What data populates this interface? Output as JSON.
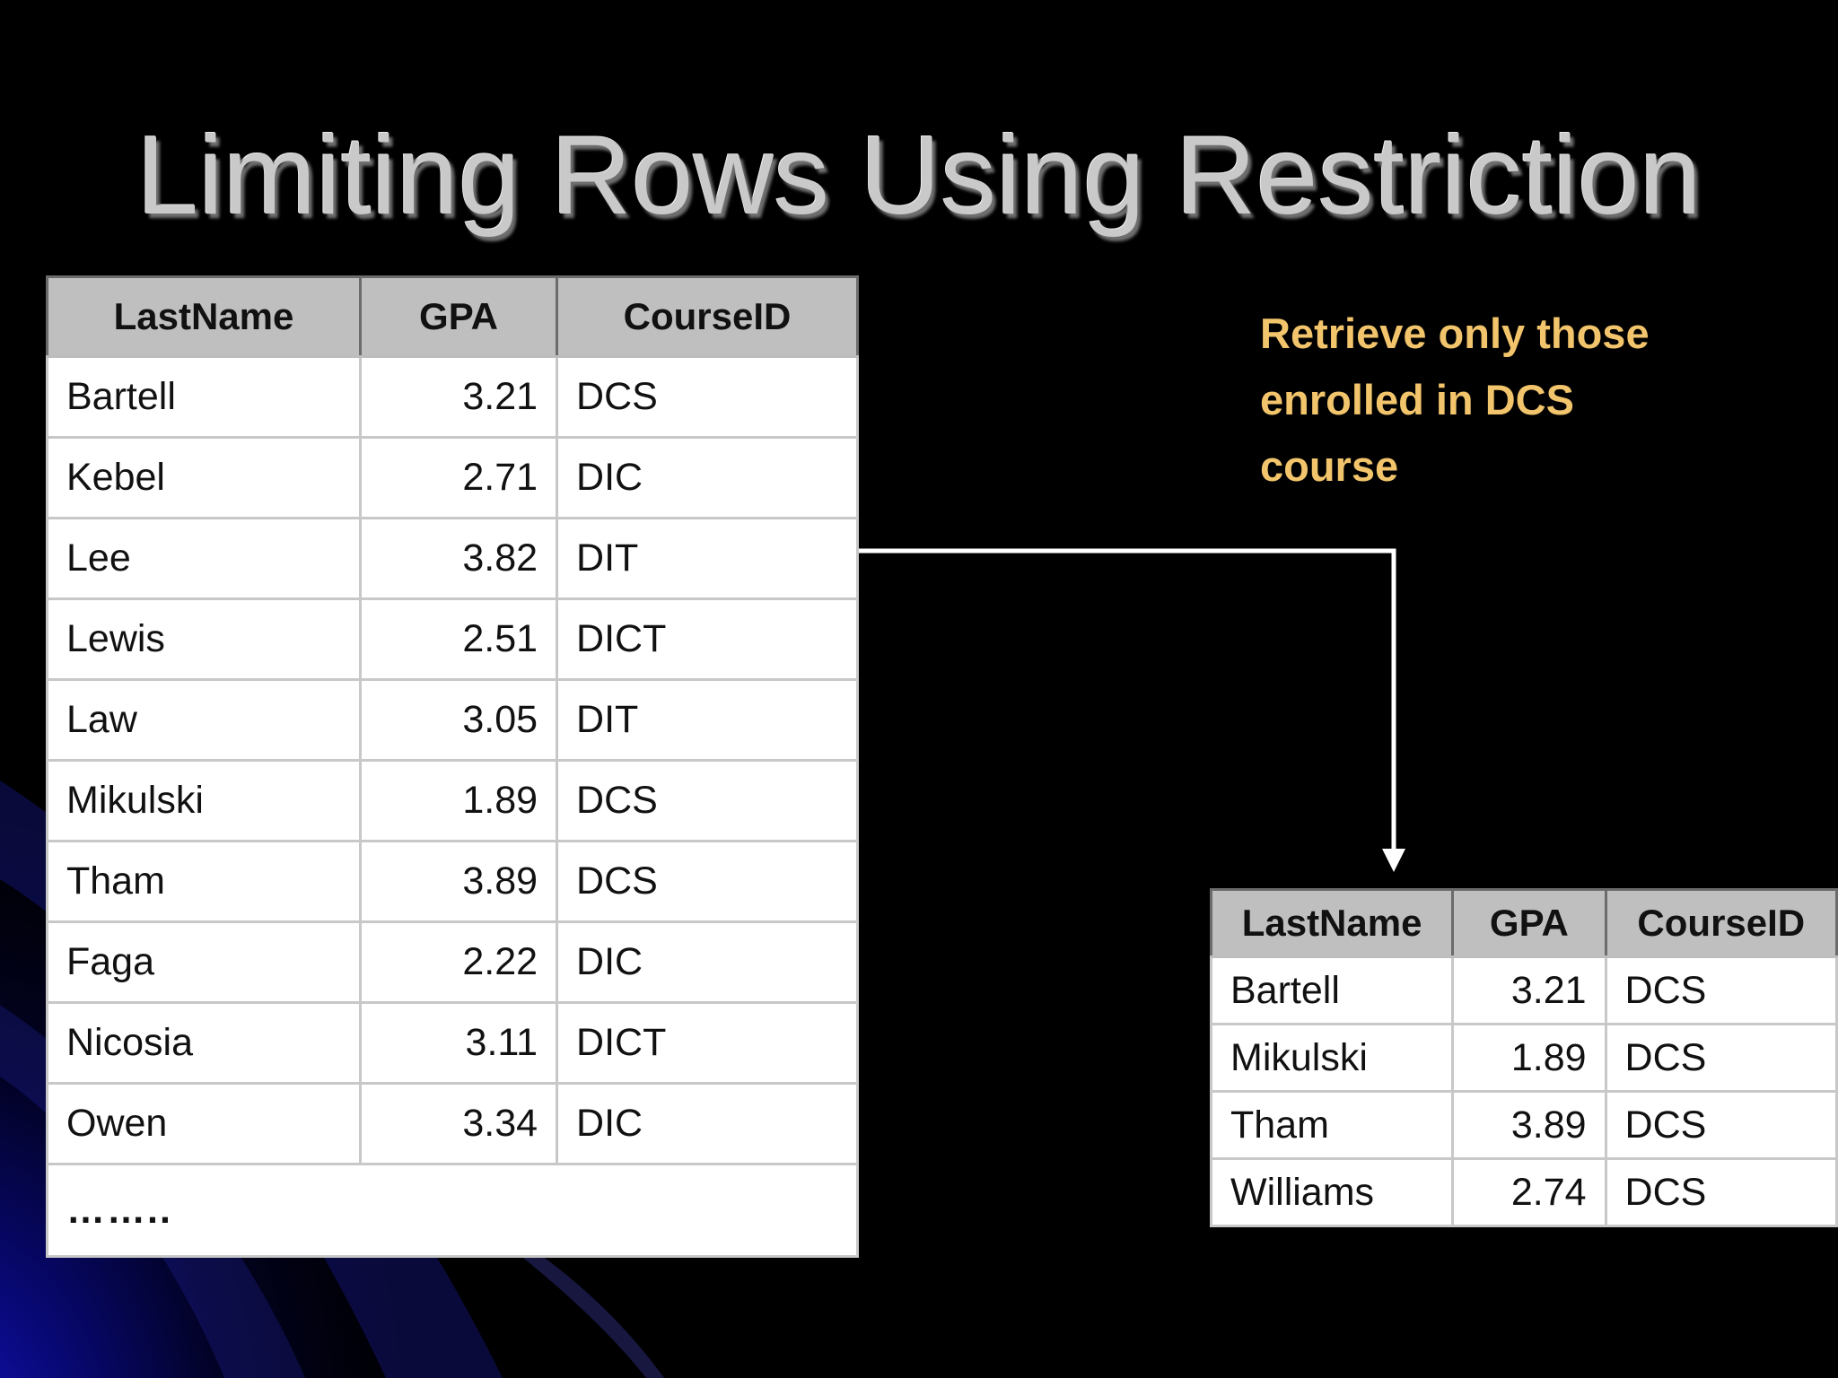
{
  "slide": {
    "title": "Limiting Rows Using Restriction",
    "note_lines": [
      "Retrieve only those",
      "enrolled in DCS",
      "course"
    ],
    "colors": {
      "background": "#000000",
      "title": "#c9c9c9",
      "note": "#f2c46b",
      "header": "#bfbfbf"
    }
  },
  "source_table": {
    "headers": [
      "LastName",
      "GPA",
      "CourseID"
    ],
    "rows": [
      [
        "Bartell",
        "3.21",
        "DCS"
      ],
      [
        "Kebel",
        "2.71",
        "DIC"
      ],
      [
        "Lee",
        "3.82",
        "DIT"
      ],
      [
        "Lewis",
        "2.51",
        "DICT"
      ],
      [
        "Law",
        "3.05",
        "DIT"
      ],
      [
        "Mikulski",
        "1.89",
        "DCS"
      ],
      [
        "Tham",
        "3.89",
        "DCS"
      ],
      [
        "Faga",
        "2.22",
        "DIC"
      ],
      [
        "Nicosia",
        "3.11",
        "DICT"
      ],
      [
        "Owen",
        "3.34",
        "DIC"
      ]
    ],
    "ellipsis": "…….."
  },
  "result_table": {
    "headers": [
      "LastName",
      "GPA",
      "CourseID"
    ],
    "rows": [
      [
        "Bartell",
        "3.21",
        "DCS"
      ],
      [
        "Mikulski",
        "1.89",
        "DCS"
      ],
      [
        "Tham",
        "3.89",
        "DCS"
      ],
      [
        "Williams",
        "2.74",
        "DCS"
      ]
    ]
  }
}
